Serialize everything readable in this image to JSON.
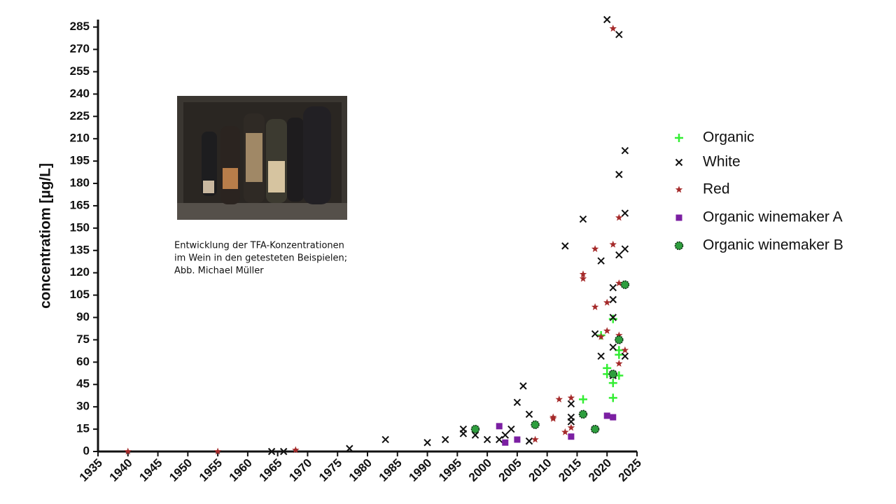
{
  "chart_data": {
    "type": "scatter",
    "y_label": "concentratiom [µg/L]",
    "xlim": [
      1935,
      2025
    ],
    "ylim": [
      0,
      290
    ],
    "xticks": [
      1935,
      1940,
      1945,
      1950,
      1955,
      1960,
      1965,
      1970,
      1975,
      1980,
      1985,
      1990,
      1995,
      2000,
      2005,
      2010,
      2015,
      2020,
      2025
    ],
    "yticks": [
      0,
      15,
      30,
      45,
      60,
      75,
      90,
      105,
      120,
      135,
      150,
      165,
      180,
      195,
      210,
      225,
      240,
      255,
      270,
      285
    ],
    "series": [
      {
        "name": "Organic",
        "color": "#33ee33",
        "marker": "plus",
        "x": [
          2016,
          2020,
          2020,
          2021,
          2021,
          2021,
          2022,
          2022,
          2022,
          2019
        ],
        "values": [
          35,
          56,
          52,
          46,
          36,
          89,
          68,
          65,
          51,
          78
        ]
      },
      {
        "name": "White",
        "color": "#111111",
        "marker": "x",
        "x": [
          1964,
          1966,
          1977,
          1983,
          1990,
          1993,
          1996,
          1996,
          1998,
          2000,
          2002,
          2003,
          2004,
          2005,
          2006,
          2007,
          2007,
          2013,
          2014,
          2014,
          2014,
          2016,
          2018,
          2019,
          2019,
          2020,
          2021,
          2021,
          2021,
          2021,
          2021,
          2022,
          2022,
          2022,
          2023,
          2023,
          2023,
          2023
        ],
        "values": [
          0,
          0,
          2,
          8,
          6,
          8,
          15,
          12,
          11,
          8,
          8,
          11,
          15,
          33,
          44,
          25,
          7,
          138,
          32,
          23,
          20,
          156,
          79,
          128,
          64,
          290,
          110,
          102,
          90,
          70,
          51,
          280,
          186,
          132,
          202,
          160,
          136,
          64
        ]
      },
      {
        "name": "Red",
        "color": "#a52a2a",
        "marker": "star",
        "x": [
          1940,
          1955,
          1968,
          2012,
          2011,
          2011,
          2008,
          2013,
          2014,
          2014,
          2016,
          2016,
          2018,
          2018,
          2019,
          2020,
          2020,
          2021,
          2021,
          2022,
          2022,
          2022,
          2022,
          2023
        ],
        "values": [
          0,
          0,
          1,
          35,
          23,
          22,
          8,
          13,
          36,
          16,
          119,
          116,
          136,
          97,
          77,
          100,
          81,
          139,
          284,
          157,
          113,
          78,
          59,
          68
        ]
      },
      {
        "name": "Organic winemaker A",
        "color": "#7b1fa2",
        "marker": "square",
        "x": [
          2002,
          2003,
          2005,
          2014,
          2018,
          2020,
          2021,
          2021
        ],
        "values": [
          17,
          6,
          8,
          10,
          15,
          24,
          23,
          52
        ]
      },
      {
        "name": "Organic winemaker B",
        "color": "#2e9e3e",
        "marker": "hexagon",
        "x": [
          1998,
          2008,
          2016,
          2018,
          2022,
          2023,
          2021
        ],
        "values": [
          15,
          18,
          25,
          15,
          75,
          112,
          52
        ]
      }
    ]
  },
  "caption": [
    "Entwicklung der TFA-Konzentrationen",
    "im Wein in den getesteten Beispielen;",
    "Abb. Michael Müller"
  ]
}
